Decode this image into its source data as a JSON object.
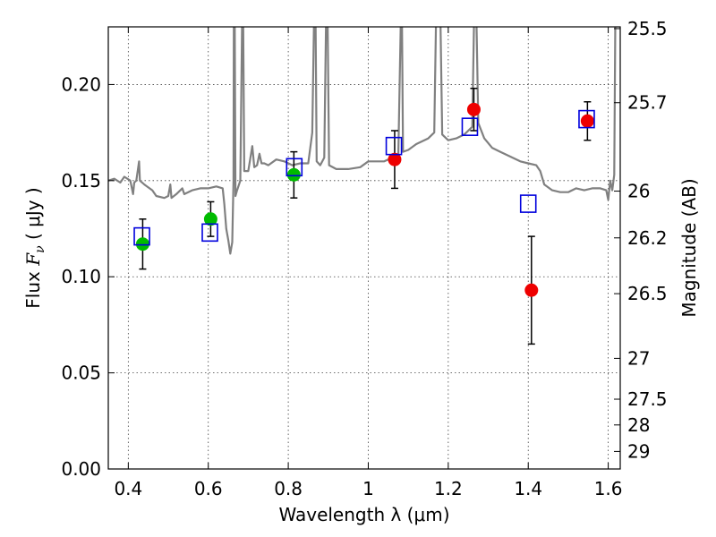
{
  "chart_data": {
    "type": "scatter",
    "xlabel": "Wavelength  λ (μm)",
    "ylabel": "Flux  F_ν  ( μJy )",
    "ylabel_parts": {
      "prefix": "Flux ",
      "symbol": "F",
      "subscript": "ν",
      "suffix": "  ( μJy )"
    },
    "y2label": "Magnitude (AB)",
    "xlim": [
      0.35,
      1.63
    ],
    "ylim": [
      0.0,
      0.23
    ],
    "grid": true,
    "x_ticks": [
      {
        "value": 0.4,
        "label": "0.4"
      },
      {
        "value": 0.6,
        "label": "0.6"
      },
      {
        "value": 0.8,
        "label": "0.8"
      },
      {
        "value": 1.0,
        "label": "1"
      },
      {
        "value": 1.2,
        "label": "1.2"
      },
      {
        "value": 1.4,
        "label": "1.4"
      },
      {
        "value": 1.6,
        "label": "1.6"
      }
    ],
    "y_ticks": [
      {
        "value": 0.0,
        "label": "0.00"
      },
      {
        "value": 0.05,
        "label": "0.05"
      },
      {
        "value": 0.1,
        "label": "0.10"
      },
      {
        "value": 0.15,
        "label": "0.15"
      },
      {
        "value": 0.2,
        "label": "0.20"
      }
    ],
    "mag_ticks": [
      {
        "value": 25.5,
        "label": "25.5"
      },
      {
        "value": 25.7,
        "label": "25.7"
      },
      {
        "value": 26.0,
        "label": "26"
      },
      {
        "value": 26.2,
        "label": "26.2"
      },
      {
        "value": 26.5,
        "label": "26.5"
      },
      {
        "value": 27.0,
        "label": "27"
      },
      {
        "value": 27.5,
        "label": "27.5"
      },
      {
        "value": 28.0,
        "label": "28"
      },
      {
        "value": 29.0,
        "label": "29"
      }
    ],
    "series": [
      {
        "kind": "line",
        "color": "#808080",
        "points": [
          [
            0.35,
            0.15
          ],
          [
            0.365,
            0.151
          ],
          [
            0.38,
            0.149
          ],
          [
            0.39,
            0.152
          ],
          [
            0.405,
            0.15
          ],
          [
            0.412,
            0.143
          ],
          [
            0.415,
            0.149
          ],
          [
            0.42,
            0.15
          ],
          [
            0.427,
            0.16
          ],
          [
            0.429,
            0.15
          ],
          [
            0.44,
            0.148
          ],
          [
            0.46,
            0.145
          ],
          [
            0.47,
            0.142
          ],
          [
            0.49,
            0.141
          ],
          [
            0.5,
            0.142
          ],
          [
            0.505,
            0.148
          ],
          [
            0.508,
            0.141
          ],
          [
            0.52,
            0.143
          ],
          [
            0.535,
            0.146
          ],
          [
            0.54,
            0.143
          ],
          [
            0.56,
            0.145
          ],
          [
            0.58,
            0.146
          ],
          [
            0.6,
            0.146
          ],
          [
            0.62,
            0.147
          ],
          [
            0.636,
            0.146
          ],
          [
            0.64,
            0.138
          ],
          [
            0.645,
            0.125
          ],
          [
            0.65,
            0.119
          ],
          [
            0.655,
            0.112
          ],
          [
            0.66,
            0.118
          ],
          [
            0.663,
            0.15
          ],
          [
            0.664,
            0.24
          ],
          [
            0.666,
            0.24
          ],
          [
            0.668,
            0.142
          ],
          [
            0.672,
            0.145
          ],
          [
            0.68,
            0.15
          ],
          [
            0.685,
            0.24
          ],
          [
            0.687,
            0.24
          ],
          [
            0.69,
            0.155
          ],
          [
            0.7,
            0.155
          ],
          [
            0.71,
            0.168
          ],
          [
            0.715,
            0.157
          ],
          [
            0.722,
            0.158
          ],
          [
            0.728,
            0.164
          ],
          [
            0.733,
            0.159
          ],
          [
            0.74,
            0.159
          ],
          [
            0.75,
            0.158
          ],
          [
            0.77,
            0.161
          ],
          [
            0.79,
            0.16
          ],
          [
            0.81,
            0.158
          ],
          [
            0.83,
            0.159
          ],
          [
            0.85,
            0.159
          ],
          [
            0.86,
            0.175
          ],
          [
            0.865,
            0.24
          ],
          [
            0.868,
            0.24
          ],
          [
            0.871,
            0.16
          ],
          [
            0.88,
            0.158
          ],
          [
            0.89,
            0.162
          ],
          [
            0.895,
            0.24
          ],
          [
            0.898,
            0.24
          ],
          [
            0.902,
            0.158
          ],
          [
            0.92,
            0.156
          ],
          [
            0.95,
            0.156
          ],
          [
            0.98,
            0.157
          ],
          [
            1.0,
            0.16
          ],
          [
            1.02,
            0.16
          ],
          [
            1.04,
            0.16
          ],
          [
            1.06,
            0.162
          ],
          [
            1.075,
            0.162
          ],
          [
            1.082,
            0.24
          ],
          [
            1.084,
            0.24
          ],
          [
            1.087,
            0.165
          ],
          [
            1.1,
            0.166
          ],
          [
            1.12,
            0.169
          ],
          [
            1.15,
            0.172
          ],
          [
            1.165,
            0.175
          ],
          [
            1.17,
            0.24
          ],
          [
            1.18,
            0.24
          ],
          [
            1.185,
            0.174
          ],
          [
            1.2,
            0.171
          ],
          [
            1.22,
            0.172
          ],
          [
            1.24,
            0.174
          ],
          [
            1.26,
            0.178
          ],
          [
            1.265,
            0.24
          ],
          [
            1.27,
            0.24
          ],
          [
            1.275,
            0.18
          ],
          [
            1.29,
            0.172
          ],
          [
            1.31,
            0.167
          ],
          [
            1.33,
            0.165
          ],
          [
            1.35,
            0.163
          ],
          [
            1.38,
            0.16
          ],
          [
            1.4,
            0.159
          ],
          [
            1.42,
            0.158
          ],
          [
            1.43,
            0.155
          ],
          [
            1.44,
            0.148
          ],
          [
            1.46,
            0.145
          ],
          [
            1.48,
            0.144
          ],
          [
            1.5,
            0.144
          ],
          [
            1.52,
            0.146
          ],
          [
            1.54,
            0.145
          ],
          [
            1.56,
            0.146
          ],
          [
            1.58,
            0.146
          ],
          [
            1.595,
            0.145
          ],
          [
            1.6,
            0.14
          ],
          [
            1.605,
            0.15
          ],
          [
            1.61,
            0.145
          ],
          [
            1.615,
            0.153
          ],
          [
            1.618,
            0.24
          ],
          [
            1.63,
            0.24
          ]
        ]
      },
      {
        "kind": "points",
        "marker": "circle",
        "color": "#00bb00",
        "points": [
          {
            "x": 0.436,
            "y": 0.117,
            "err": 0.013
          },
          {
            "x": 0.606,
            "y": 0.13,
            "err": 0.009
          },
          {
            "x": 0.814,
            "y": 0.153,
            "err": 0.012
          }
        ]
      },
      {
        "kind": "points",
        "marker": "circle",
        "color": "#ee0000",
        "points": [
          {
            "x": 1.066,
            "y": 0.161,
            "err": 0.015
          },
          {
            "x": 1.264,
            "y": 0.187,
            "err": 0.011
          },
          {
            "x": 1.408,
            "y": 0.093,
            "err": 0.028
          },
          {
            "x": 1.548,
            "y": 0.181,
            "err": 0.01
          }
        ]
      },
      {
        "kind": "points",
        "marker": "square-open",
        "color": "#0000dd",
        "points": [
          {
            "x": 0.434,
            "y": 0.121
          },
          {
            "x": 0.604,
            "y": 0.123
          },
          {
            "x": 0.815,
            "y": 0.157
          },
          {
            "x": 1.064,
            "y": 0.168
          },
          {
            "x": 1.254,
            "y": 0.178
          },
          {
            "x": 1.4,
            "y": 0.138
          },
          {
            "x": 1.546,
            "y": 0.182
          }
        ]
      }
    ]
  }
}
